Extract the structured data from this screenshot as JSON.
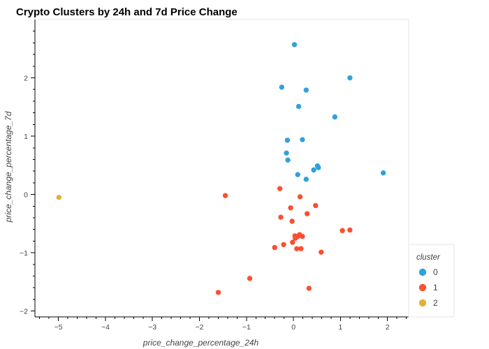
{
  "chart_data": {
    "type": "scatter",
    "title": "Crypto Clusters by 24h and 7d Price Change",
    "xlabel": "price_change_percentage_24h",
    "ylabel": "price_change_percentage_7d",
    "xlim": [
      -5.5,
      2.45
    ],
    "ylim": [
      -2.1,
      3.0
    ],
    "x_ticks": [
      -5,
      -4,
      -3,
      -2,
      -1,
      0,
      1,
      2
    ],
    "y_ticks": [
      -2,
      -1,
      0,
      1,
      2
    ],
    "x_tick_labels": [
      "−5",
      "−4",
      "−3",
      "−2",
      "−1",
      "0",
      "1",
      "2"
    ],
    "y_tick_labels": [
      "−2",
      "−1",
      "0",
      "1",
      "2"
    ],
    "grid": false,
    "legend": {
      "title": "cluster",
      "position": "bottom-right-outside"
    },
    "colors": {
      "0": "#30a2da",
      "1": "#fc4f30",
      "2": "#e5ae38"
    },
    "series": [
      {
        "name": "0",
        "points": [
          {
            "x": 0.02,
            "y": 2.57
          },
          {
            "x": 1.2,
            "y": 2.0
          },
          {
            "x": -0.25,
            "y": 1.84
          },
          {
            "x": 0.27,
            "y": 1.79
          },
          {
            "x": 0.11,
            "y": 1.51
          },
          {
            "x": 0.88,
            "y": 1.33
          },
          {
            "x": -0.13,
            "y": 0.93
          },
          {
            "x": 0.19,
            "y": 0.94
          },
          {
            "x": -0.15,
            "y": 0.71
          },
          {
            "x": -0.12,
            "y": 0.59
          },
          {
            "x": 0.51,
            "y": 0.49
          },
          {
            "x": 0.53,
            "y": 0.46
          },
          {
            "x": 0.43,
            "y": 0.42
          },
          {
            "x": 1.91,
            "y": 0.37
          },
          {
            "x": 0.09,
            "y": 0.34
          },
          {
            "x": 0.27,
            "y": 0.26
          }
        ]
      },
      {
        "name": "1",
        "points": [
          {
            "x": -0.29,
            "y": 0.1
          },
          {
            "x": -1.45,
            "y": -0.02
          },
          {
            "x": 0.14,
            "y": -0.04
          },
          {
            "x": 0.47,
            "y": -0.19
          },
          {
            "x": -0.06,
            "y": -0.23
          },
          {
            "x": 0.29,
            "y": -0.33
          },
          {
            "x": -0.27,
            "y": -0.39
          },
          {
            "x": -0.03,
            "y": -0.46
          },
          {
            "x": 1.04,
            "y": -0.62
          },
          {
            "x": 1.2,
            "y": -0.61
          },
          {
            "x": 0.13,
            "y": -0.69
          },
          {
            "x": 0.03,
            "y": -0.71
          },
          {
            "x": 0.09,
            "y": -0.72
          },
          {
            "x": 0.19,
            "y": -0.72
          },
          {
            "x": 0.04,
            "y": -0.75
          },
          {
            "x": -0.02,
            "y": -0.82
          },
          {
            "x": -0.21,
            "y": -0.86
          },
          {
            "x": -0.4,
            "y": -0.91
          },
          {
            "x": 0.07,
            "y": -0.93
          },
          {
            "x": 0.16,
            "y": -0.93
          },
          {
            "x": 0.59,
            "y": -0.99
          },
          {
            "x": -0.93,
            "y": -1.44
          },
          {
            "x": 0.33,
            "y": -1.61
          },
          {
            "x": -1.6,
            "y": -1.68
          }
        ]
      },
      {
        "name": "2",
        "points": [
          {
            "x": -4.99,
            "y": -0.05
          }
        ]
      }
    ]
  }
}
